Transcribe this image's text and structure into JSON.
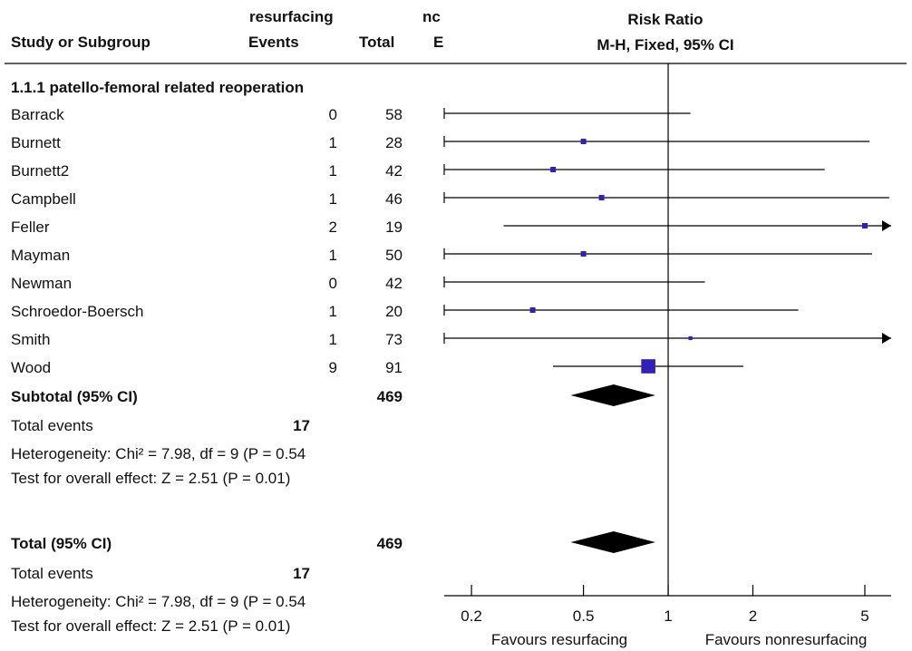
{
  "header": {
    "group1_label": "resurfacing",
    "group2_label_cut": "nc",
    "col_study": "Study or Subgroup",
    "col_events": "Events",
    "col_total": "Total",
    "col_events2_cut": "E",
    "plot_title": "Risk Ratio",
    "plot_method": "M-H, Fixed, 95% CI"
  },
  "subgroup_heading": "1.1.1 patello-femoral related reoperation",
  "studies": [
    {
      "name": "Barrack",
      "events": "0",
      "total": "58"
    },
    {
      "name": "Burnett",
      "events": "1",
      "total": "28"
    },
    {
      "name": "Burnett2",
      "events": "1",
      "total": "42"
    },
    {
      "name": "Campbell",
      "events": "1",
      "total": "46"
    },
    {
      "name": "Feller",
      "events": "2",
      "total": "19"
    },
    {
      "name": "Mayman",
      "events": "1",
      "total": "50"
    },
    {
      "name": "Newman",
      "events": "0",
      "total": "42"
    },
    {
      "name": "Schroedor-Boersch",
      "events": "1",
      "total": "20"
    },
    {
      "name": "Smith",
      "events": "1",
      "total": "73"
    },
    {
      "name": "Wood",
      "events": "9",
      "total": "91"
    }
  ],
  "subtotal": {
    "label": "Subtotal (95% CI)",
    "total": "469"
  },
  "subtotal_events": {
    "label": "Total events",
    "events": "17"
  },
  "subtotal_heterogeneity": "Heterogeneity: Chi² = 7.98, df = 9 (P = 0.54",
  "subtotal_effect": "Test for overall effect: Z = 2.51 (P = 0.01)",
  "overall": {
    "label": "Total (95% CI)",
    "total": "469"
  },
  "overall_events": {
    "label": "Total events",
    "events": "17"
  },
  "overall_heterogeneity": "Heterogeneity: Chi² = 7.98, df = 9 (P = 0.54",
  "overall_effect": "Test for overall effect: Z = 2.51 (P = 0.01)",
  "chart_data": {
    "type": "scatter",
    "scale": "log",
    "xlim": [
      0.16,
      6.2
    ],
    "title": "Risk Ratio",
    "subtitle": "M-H, Fixed, 95% CI",
    "ticks": [
      {
        "value": 0.2,
        "label": "0.2"
      },
      {
        "value": 0.5,
        "label": "0.5"
      },
      {
        "value": 1,
        "label": "1"
      },
      {
        "value": 2,
        "label": "2"
      },
      {
        "value": 5,
        "label": "5"
      }
    ],
    "reference_line": 1,
    "favours_left": "Favours resurfacing",
    "favours_right": "Favours nonresurfacing",
    "square_color": "#2e20b8",
    "diamond_color": "#000000",
    "studies": [
      {
        "rr": null,
        "lo": 0.005,
        "hi": 1.2,
        "size": 0
      },
      {
        "rr": 0.5,
        "lo": 0.05,
        "hi": 5.2,
        "size": 1
      },
      {
        "rr": 0.39,
        "lo": 0.04,
        "hi": 3.6,
        "size": 1
      },
      {
        "rr": 0.58,
        "lo": 0.06,
        "hi": 6.1,
        "size": 1
      },
      {
        "rr": 5.0,
        "lo": 0.26,
        "hi": 95,
        "size": 1
      },
      {
        "rr": 0.5,
        "lo": 0.05,
        "hi": 5.3,
        "size": 1
      },
      {
        "rr": null,
        "lo": 0.005,
        "hi": 1.35,
        "size": 0
      },
      {
        "rr": 0.33,
        "lo": 0.04,
        "hi": 2.9,
        "size": 1
      },
      {
        "rr": 1.2,
        "lo": 0.05,
        "hi": 30,
        "size": 0.7
      },
      {
        "rr": 0.85,
        "lo": 0.39,
        "hi": 1.85,
        "size": 2.6
      }
    ],
    "subtotal_diamond": {
      "rr": 0.64,
      "lo": 0.45,
      "hi": 0.9
    },
    "overall_diamond": {
      "rr": 0.64,
      "lo": 0.45,
      "hi": 0.9
    }
  }
}
